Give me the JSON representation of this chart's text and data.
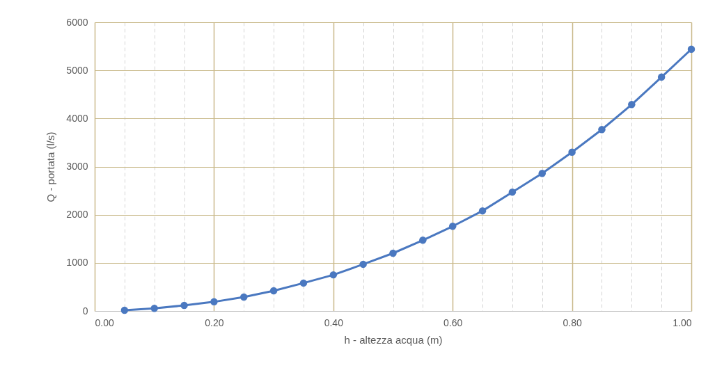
{
  "chart_data": {
    "type": "line",
    "xlabel": "h - altezza acqua (m)",
    "ylabel": "Q - portata (l/s)",
    "x": [
      0.05,
      0.1,
      0.15,
      0.2,
      0.25,
      0.3,
      0.35,
      0.4,
      0.45,
      0.5,
      0.55,
      0.6,
      0.65,
      0.7,
      0.75,
      0.8,
      0.85,
      0.9,
      0.95,
      1.0
    ],
    "series": [
      {
        "color": "#4a78c0",
        "values": [
          15,
          55,
          115,
          190,
          290,
          420,
          580,
          750,
          970,
          1200,
          1470,
          1760,
          2080,
          2470,
          2860,
          3300,
          3770,
          4290,
          4860,
          5440
        ]
      }
    ],
    "xlim": [
      0,
      1
    ],
    "xticks": [
      {
        "value": 0,
        "label": "0.00"
      },
      {
        "value": 0.05,
        "label": null
      },
      {
        "value": 0.1,
        "label": null
      },
      {
        "value": 0.15,
        "label": null
      },
      {
        "value": 0.2,
        "label": "0.20"
      },
      {
        "value": 0.25,
        "label": null
      },
      {
        "value": 0.3,
        "label": null
      },
      {
        "value": 0.35,
        "label": null
      },
      {
        "value": 0.4,
        "label": "0.40"
      },
      {
        "value": 0.45,
        "label": null
      },
      {
        "value": 0.5,
        "label": null
      },
      {
        "value": 0.55,
        "label": null
      },
      {
        "value": 0.6,
        "label": "0.60"
      },
      {
        "value": 0.65,
        "label": null
      },
      {
        "value": 0.7,
        "label": null
      },
      {
        "value": 0.75,
        "label": null
      },
      {
        "value": 0.8,
        "label": "0.80"
      },
      {
        "value": 0.85,
        "label": null
      },
      {
        "value": 0.9,
        "label": null
      },
      {
        "value": 0.95,
        "label": null
      },
      {
        "value": 1,
        "label": "1.00"
      }
    ],
    "ylim": [
      0,
      6000
    ],
    "yticks": [
      0,
      1000,
      2000,
      3000,
      4000,
      5000,
      6000
    ],
    "grid": true,
    "marker": "circle",
    "line_style": "solid"
  }
}
